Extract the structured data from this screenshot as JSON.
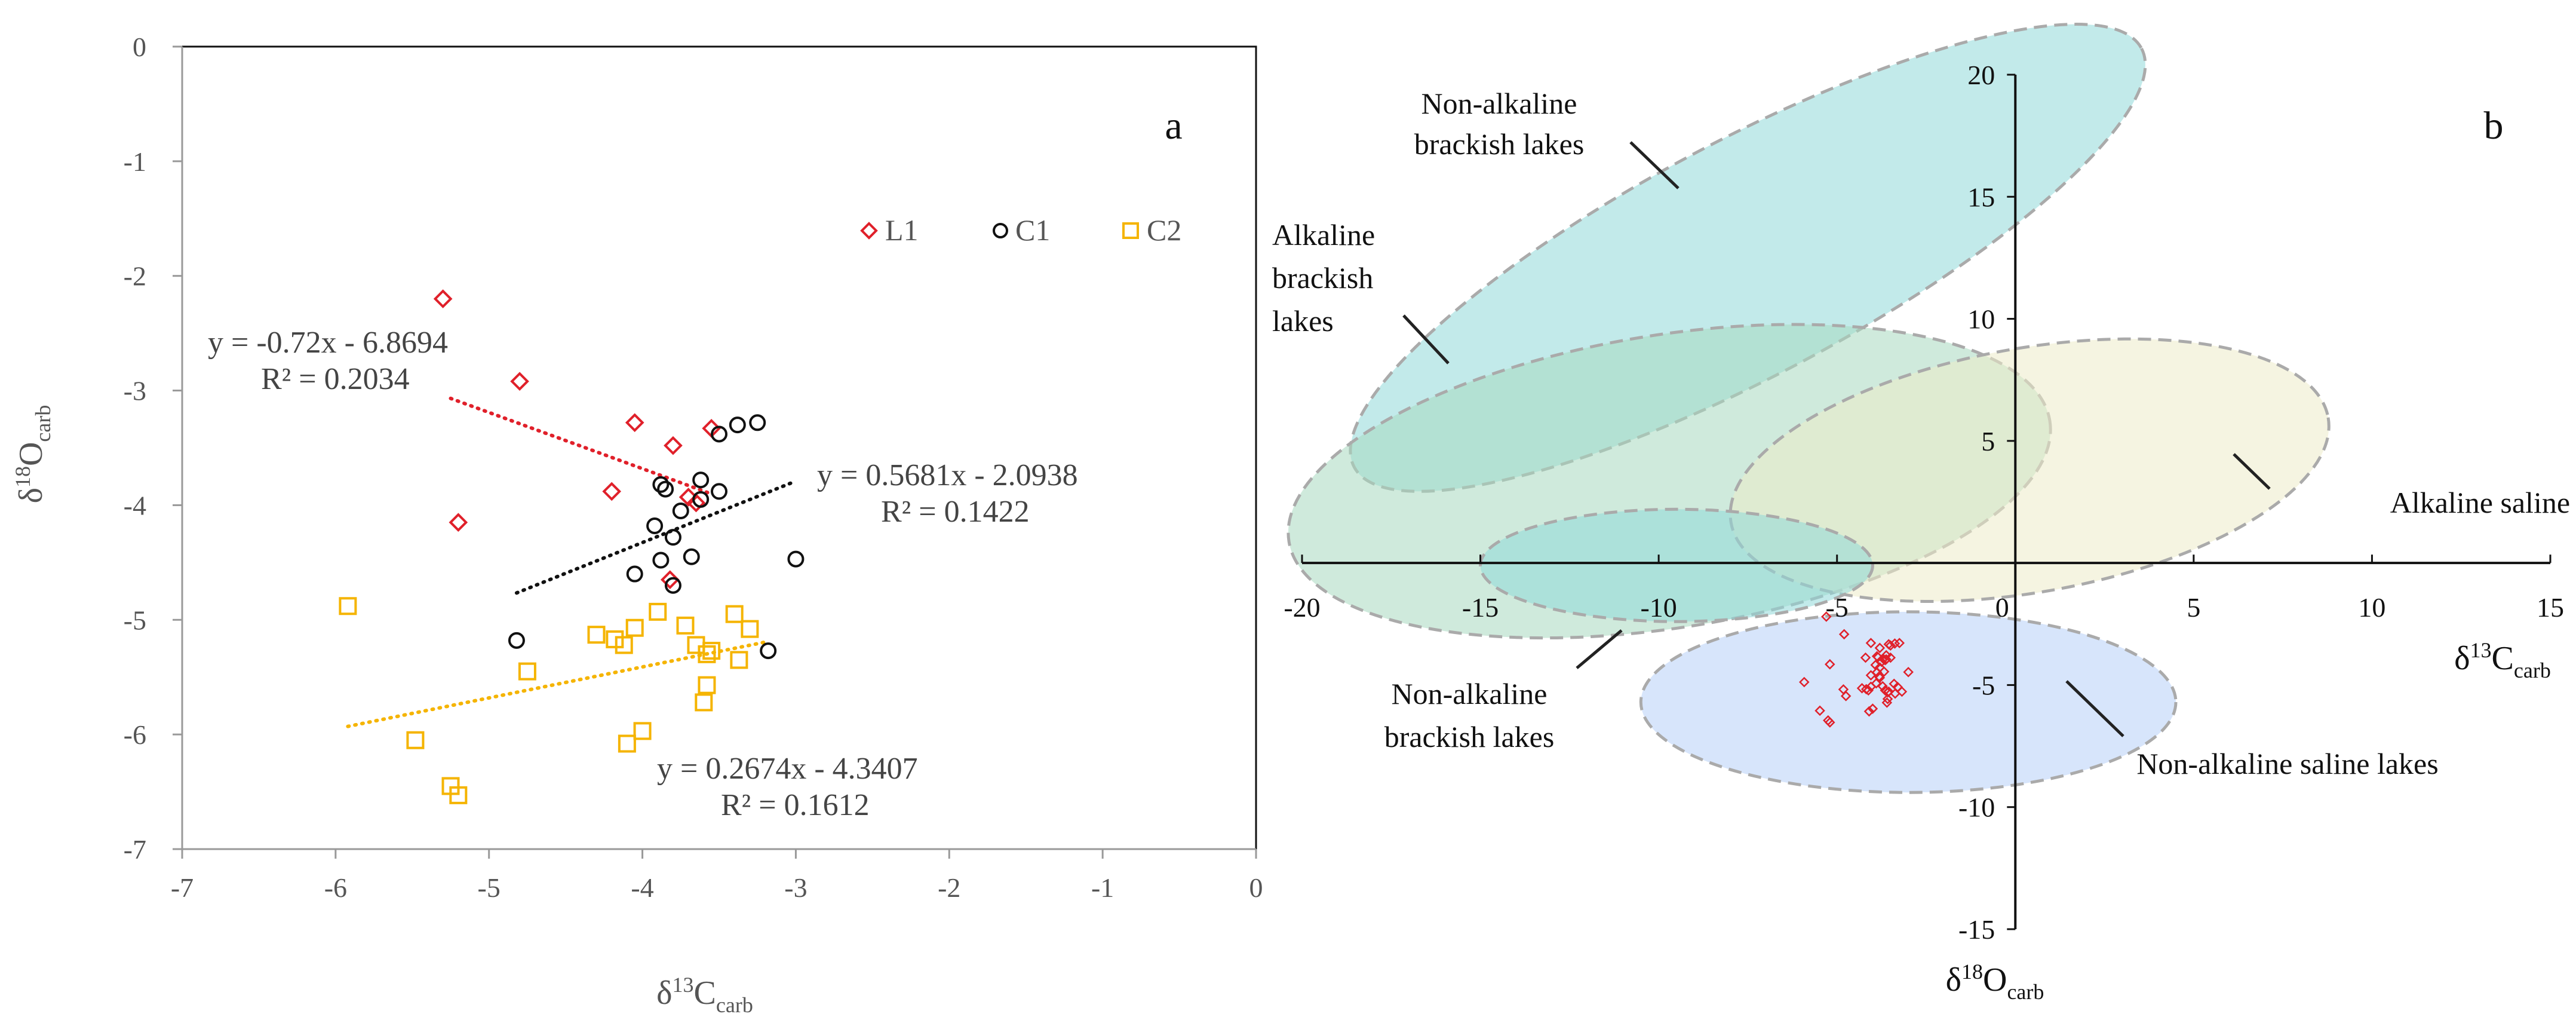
{
  "chart_data": [
    {
      "panel_label": "a",
      "type": "scatter",
      "xlabel": {
        "main": "δ",
        "sup": "13",
        "sub_main": "C",
        "sub": "carb"
      },
      "ylabel": {
        "main": "δ",
        "sup": "18",
        "sub_main": "O",
        "sub": "carb"
      },
      "xlim": [
        -7,
        0
      ],
      "ylim": [
        -7,
        0
      ],
      "x_ticks": [
        -7,
        -6,
        -5,
        -4,
        -3,
        -2,
        -1,
        0
      ],
      "y_ticks": [
        0,
        -1,
        -2,
        -3,
        -4,
        -5,
        -6,
        -7
      ],
      "grid": false,
      "legend": [
        {
          "name": "L1",
          "marker": "diamond",
          "color": "#e0202a"
        },
        {
          "name": "C1",
          "marker": "circle",
          "color": "#111111"
        },
        {
          "name": "C2",
          "marker": "square",
          "color": "#f5b400"
        }
      ],
      "series": [
        {
          "name": "L1",
          "color": "#e0202a",
          "marker": "diamond",
          "points": [
            [
              -5.3,
              -2.2
            ],
            [
              -4.8,
              -2.92
            ],
            [
              -4.05,
              -3.28
            ],
            [
              -3.8,
              -3.48
            ],
            [
              -3.55,
              -3.33
            ],
            [
              -4.2,
              -3.88
            ],
            [
              -3.65,
              -3.98
            ],
            [
              -3.7,
              -3.93
            ],
            [
              -5.2,
              -4.15
            ],
            [
              -3.82,
              -4.65
            ]
          ],
          "trendline": {
            "x": [
              -5.25,
              -3.55
            ],
            "equation": "y = -0.72x - 6.8694",
            "r2": "R² = 0.2034"
          }
        },
        {
          "name": "C1",
          "color": "#111111",
          "marker": "circle",
          "points": [
            [
              -3.5,
              -3.38
            ],
            [
              -3.38,
              -3.3
            ],
            [
              -3.25,
              -3.28
            ],
            [
              -3.62,
              -3.78
            ],
            [
              -3.88,
              -3.82
            ],
            [
              -3.85,
              -3.86
            ],
            [
              -3.5,
              -3.88
            ],
            [
              -3.62,
              -3.95
            ],
            [
              -3.75,
              -4.05
            ],
            [
              -3.92,
              -4.18
            ],
            [
              -3.8,
              -4.28
            ],
            [
              -3.68,
              -4.45
            ],
            [
              -3.88,
              -4.48
            ],
            [
              -4.05,
              -4.6
            ],
            [
              -3.8,
              -4.7
            ],
            [
              -3.0,
              -4.47
            ],
            [
              -4.82,
              -5.18
            ],
            [
              -3.18,
              -5.27
            ]
          ],
          "trendline": {
            "x": [
              -4.82,
              -3.0
            ],
            "equation": "y = 0.5681x - 2.0938",
            "r2": "R² = 0.1422"
          }
        },
        {
          "name": "C2",
          "color": "#f5b400",
          "marker": "square",
          "points": [
            [
              -5.92,
              -4.88
            ],
            [
              -3.4,
              -4.95
            ],
            [
              -3.9,
              -4.93
            ],
            [
              -4.05,
              -5.07
            ],
            [
              -3.72,
              -5.05
            ],
            [
              -4.3,
              -5.13
            ],
            [
              -4.18,
              -5.17
            ],
            [
              -3.3,
              -5.08
            ],
            [
              -3.65,
              -5.22
            ],
            [
              -4.12,
              -5.22
            ],
            [
              -3.58,
              -5.3
            ],
            [
              -3.55,
              -5.27
            ],
            [
              -3.37,
              -5.35
            ],
            [
              -4.75,
              -5.45
            ],
            [
              -3.58,
              -5.57
            ],
            [
              -3.6,
              -5.72
            ],
            [
              -4.0,
              -5.97
            ],
            [
              -5.48,
              -6.05
            ],
            [
              -4.1,
              -6.08
            ],
            [
              -5.25,
              -6.45
            ],
            [
              -5.2,
              -6.53
            ]
          ],
          "trendline": {
            "x": [
              -5.92,
              -3.2
            ],
            "equation": "y = 0.2674x - 4.3407",
            "r2": "R² = 0.1612"
          }
        }
      ]
    },
    {
      "panel_label": "b",
      "type": "scatter",
      "xlabel": {
        "main": "δ",
        "sup": "13",
        "sub_main": "C",
        "sub": "carb"
      },
      "ylabel": {
        "main": "δ",
        "sup": "18",
        "sub_main": "O",
        "sub": "carb"
      },
      "xlim": [
        -20,
        15
      ],
      "ylim": [
        -15,
        20
      ],
      "x_ticks": [
        -20,
        -15,
        -10,
        -5,
        0,
        5,
        10,
        15
      ],
      "y_ticks": [
        20,
        15,
        10,
        5,
        0,
        -5,
        -10,
        -15
      ],
      "x_tick_labels": [
        "-20",
        "-15",
        "-10",
        "-5",
        "0",
        "5",
        "10",
        "15"
      ],
      "y_tick_labels": [
        "20",
        "15",
        "10",
        "5",
        "0",
        "-5",
        "-10",
        "-15"
      ],
      "regions": [
        {
          "name": "Non-alkaline brackish lakes",
          "lines": [
            "Non-alkaline",
            "brackish lakes"
          ],
          "color": "#8fd8d8",
          "center": [
            -7.5,
            12.5
          ],
          "radii": [
            12.5,
            4.8
          ],
          "angle_deg": -28
        },
        {
          "name": "Alkaline brackish lakes",
          "lines": [
            "Alkaline",
            "brackish",
            "lakes"
          ],
          "color": "#a8d8c0",
          "center": [
            -9.7,
            3.35
          ],
          "radii": [
            10.8,
            6.0
          ],
          "angle_deg": -9
        },
        {
          "name": "Alkaline saline lakes",
          "lines": [
            "Alkaline saline lakes"
          ],
          "color": "#ecebc8",
          "center": [
            0.4,
            3.8
          ],
          "radii": [
            8.5,
            5.0
          ],
          "angle_deg": -10
        },
        {
          "name": "Non-alkaline brackish lakes",
          "lines": [
            "Non-alkaline",
            "brackish lakes"
          ],
          "color": "#8fd8d8",
          "center": [
            -9.5,
            -0.1
          ],
          "radii": [
            5.5,
            2.3
          ],
          "angle_deg": 0
        },
        {
          "name": "Non-alkaline saline lakes",
          "lines": [
            "Non-alkaline saline lakes"
          ],
          "color": "#b6cff8",
          "center": [
            -3.0,
            -5.7
          ],
          "radii": [
            7.5,
            3.7
          ],
          "angle_deg": 0
        }
      ],
      "points": {
        "color": "#e0202a",
        "marker": "diamond",
        "values": [
          [
            -5.3,
            -2.2
          ],
          [
            -4.8,
            -2.92
          ],
          [
            -4.05,
            -3.28
          ],
          [
            -3.8,
            -3.48
          ],
          [
            -3.55,
            -3.33
          ],
          [
            -4.2,
            -3.88
          ],
          [
            -3.65,
            -3.98
          ],
          [
            -3.7,
            -3.93
          ],
          [
            -5.2,
            -4.15
          ],
          [
            -3.82,
            -4.65
          ],
          [
            -3.5,
            -3.38
          ],
          [
            -3.38,
            -3.3
          ],
          [
            -3.25,
            -3.28
          ],
          [
            -3.62,
            -3.78
          ],
          [
            -3.88,
            -3.82
          ],
          [
            -3.85,
            -3.86
          ],
          [
            -3.5,
            -3.88
          ],
          [
            -3.62,
            -3.95
          ],
          [
            -3.75,
            -4.05
          ],
          [
            -3.92,
            -4.18
          ],
          [
            -3.8,
            -4.28
          ],
          [
            -3.68,
            -4.45
          ],
          [
            -3.88,
            -4.48
          ],
          [
            -4.05,
            -4.6
          ],
          [
            -3.8,
            -4.7
          ],
          [
            -3.0,
            -4.47
          ],
          [
            -4.82,
            -5.18
          ],
          [
            -3.18,
            -5.27
          ],
          [
            -5.92,
            -4.88
          ],
          [
            -3.4,
            -4.95
          ],
          [
            -3.9,
            -4.93
          ],
          [
            -4.05,
            -5.07
          ],
          [
            -3.72,
            -5.05
          ],
          [
            -4.3,
            -5.13
          ],
          [
            -4.18,
            -5.17
          ],
          [
            -3.3,
            -5.08
          ],
          [
            -3.65,
            -5.22
          ],
          [
            -4.12,
            -5.22
          ],
          [
            -3.58,
            -5.3
          ],
          [
            -3.55,
            -5.27
          ],
          [
            -3.37,
            -5.35
          ],
          [
            -4.75,
            -5.45
          ],
          [
            -3.58,
            -5.57
          ],
          [
            -3.6,
            -5.72
          ],
          [
            -4.0,
            -5.97
          ],
          [
            -5.48,
            -6.05
          ],
          [
            -4.1,
            -6.08
          ],
          [
            -5.25,
            -6.45
          ],
          [
            -5.2,
            -6.53
          ]
        ]
      }
    }
  ]
}
